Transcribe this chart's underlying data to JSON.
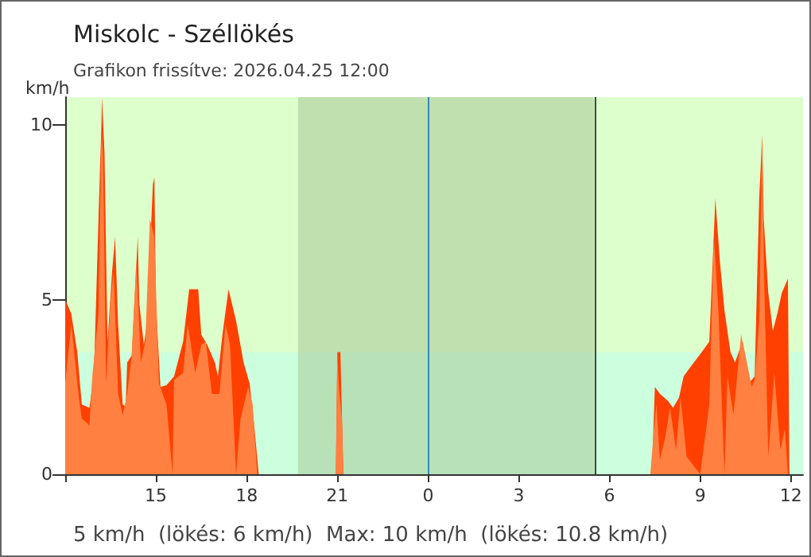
{
  "chart_data": {
    "type": "area",
    "title": "Miskolc - Széllökés",
    "subtitle": "Grafikon frissítve: 2026.04.25 12:00",
    "ylabel": "km/h",
    "annotations": [
      "5 km/h  (lökés: 6 km/h)  Max: 10 km/h  (lökés: 10.8 km/h)"
    ],
    "series": [
      {
        "color": "#ff4000",
        "x": [
          "2026-04-24T12:00",
          "2026-04-24T12:12",
          "2026-04-24T12:24",
          "2026-04-24T12:33",
          "2026-04-24T12:48",
          "2026-04-24T12:57",
          "2026-04-24T13:06",
          "2026-04-24T13:12",
          "2026-04-24T13:13",
          "2026-04-24T13:18",
          "2026-04-24T13:24",
          "2026-04-24T13:33",
          "2026-04-24T13:39",
          "2026-04-24T13:45",
          "2026-04-24T13:54",
          "2026-04-24T14:00",
          "2026-04-24T14:03",
          "2026-04-24T14:12",
          "2026-04-24T14:24",
          "2026-04-24T14:27",
          "2026-04-24T14:36",
          "2026-04-24T14:42",
          "2026-04-24T14:54",
          "2026-04-24T14:57",
          "2026-04-24T15:00",
          "2026-04-24T15:09",
          "2026-04-24T15:21",
          "2026-04-24T15:36",
          "2026-04-24T15:54",
          "2026-04-24T16:06",
          "2026-04-24T16:24",
          "2026-04-24T16:30",
          "2026-04-24T16:42",
          "2026-04-24T16:57",
          "2026-04-24T17:03",
          "2026-04-24T17:12",
          "2026-04-24T17:24",
          "2026-04-24T17:39",
          "2026-04-24T17:54",
          "2026-04-24T18:06",
          "2026-04-24T18:15",
          "2026-04-24T18:24",
          "2026-04-24T20:57",
          "2026-04-24T21:00",
          "2026-04-24T21:06",
          "2026-04-24T21:12",
          "2026-04-25T07:24",
          "2026-04-25T07:30",
          "2026-04-25T07:40",
          "2026-04-25T07:56",
          "2026-04-25T08:06",
          "2026-04-25T08:18",
          "2026-04-25T08:27",
          "2026-04-25T08:42",
          "2026-04-25T09:03",
          "2026-04-25T09:18",
          "2026-04-25T09:30",
          "2026-04-25T09:39",
          "2026-04-25T09:48",
          "2026-04-25T10:00",
          "2026-04-25T10:09",
          "2026-04-25T10:24",
          "2026-04-25T10:36",
          "2026-04-25T10:48",
          "2026-04-25T10:57",
          "2026-04-25T11:03",
          "2026-04-25T11:06",
          "2026-04-25T11:15",
          "2026-04-25T11:24",
          "2026-04-25T11:33",
          "2026-04-25T11:42",
          "2026-04-25T11:54",
          "2026-04-25T11:57",
          "2026-04-25T12:24"
        ],
        "values": [
          5.0,
          4.6,
          3.5,
          2.0,
          1.9,
          2.85,
          7.3,
          10.1,
          10.8,
          9.2,
          3.8,
          5.8,
          6.8,
          4.3,
          2.0,
          1.95,
          3.2,
          3.4,
          6.8,
          4.9,
          3.7,
          4.3,
          8.3,
          8.5,
          4.9,
          2.5,
          2.55,
          2.8,
          3.8,
          5.3,
          5.3,
          4.0,
          3.7,
          3.2,
          2.8,
          4.0,
          5.3,
          4.4,
          3.2,
          2.6,
          1.4,
          0,
          0,
          3.5,
          3.5,
          0,
          0,
          2.5,
          2.3,
          2.1,
          1.9,
          2.2,
          2.8,
          3.1,
          3.5,
          3.8,
          7.9,
          6.1,
          4.7,
          3.5,
          3.2,
          3.8,
          2.6,
          2.8,
          7.9,
          9.7,
          7.3,
          5.2,
          4.1,
          4.6,
          5.2,
          5.6,
          0,
          0
        ]
      },
      {
        "color": "#ff8040",
        "x": [
          "2026-04-24T12:00",
          "2026-04-24T12:12",
          "2026-04-24T12:27",
          "2026-04-24T12:33",
          "2026-04-24T12:48",
          "2026-04-24T12:54",
          "2026-04-24T13:06",
          "2026-04-24T13:12",
          "2026-04-24T13:15",
          "2026-04-24T13:21",
          "2026-04-24T13:30",
          "2026-04-24T13:36",
          "2026-04-24T13:45",
          "2026-04-24T13:54",
          "2026-04-24T14:03",
          "2026-04-24T14:12",
          "2026-04-24T14:21",
          "2026-04-24T14:30",
          "2026-04-24T14:39",
          "2026-04-24T14:48",
          "2026-04-24T14:57",
          "2026-04-24T15:06",
          "2026-04-24T15:21",
          "2026-04-24T15:33",
          "2026-04-24T15:36",
          "2026-04-24T15:54",
          "2026-04-24T16:03",
          "2026-04-24T16:18",
          "2026-04-24T16:30",
          "2026-04-24T16:39",
          "2026-04-24T16:51",
          "2026-04-24T17:06",
          "2026-04-24T17:18",
          "2026-04-24T17:27",
          "2026-04-24T17:39",
          "2026-04-24T17:48",
          "2026-04-24T18:03",
          "2026-04-24T18:12",
          "2026-04-24T18:21",
          "2026-04-24T20:57",
          "2026-04-24T21:00",
          "2026-04-24T21:03",
          "2026-04-24T21:09",
          "2026-04-24T21:12",
          "2026-04-25T07:21",
          "2026-04-25T07:27",
          "2026-04-25T07:33",
          "2026-04-25T07:40",
          "2026-04-25T07:51",
          "2026-04-25T08:00",
          "2026-04-25T08:12",
          "2026-04-25T08:21",
          "2026-04-25T08:33",
          "2026-04-25T09:00",
          "2026-04-25T09:18",
          "2026-04-25T09:27",
          "2026-04-25T09:36",
          "2026-04-25T09:48",
          "2026-04-25T09:54",
          "2026-04-25T10:06",
          "2026-04-25T10:21",
          "2026-04-25T10:30",
          "2026-04-25T10:42",
          "2026-04-25T10:48",
          "2026-04-25T10:57",
          "2026-04-25T11:03",
          "2026-04-25T11:06",
          "2026-04-25T11:15",
          "2026-04-25T11:27",
          "2026-04-25T11:39",
          "2026-04-25T11:48",
          "2026-04-25T11:54",
          "2026-04-25T12:24"
        ],
        "values": [
          2.6,
          4.3,
          2.2,
          1.6,
          1.4,
          2.85,
          4.6,
          9.8,
          9.2,
          2.6,
          5.0,
          5.8,
          2.3,
          1.7,
          2.3,
          3.4,
          6.1,
          3.2,
          3.8,
          7.3,
          6.8,
          2.6,
          2.0,
          0,
          2.7,
          2.9,
          4.3,
          2.9,
          3.7,
          3.8,
          2.3,
          2.3,
          4.3,
          3.7,
          0,
          1.6,
          2.5,
          2.0,
          0,
          0,
          3.5,
          2.5,
          1.6,
          0,
          0,
          1.1,
          2.0,
          0.4,
          1.1,
          1.9,
          0.7,
          2.2,
          0.5,
          0,
          2.0,
          6.8,
          4.7,
          0,
          2.8,
          1.7,
          4.0,
          3.4,
          2.5,
          2.7,
          4.4,
          9.7,
          6.1,
          0.5,
          2.9,
          0.7,
          1.3,
          0,
          0
        ]
      }
    ],
    "xlim": [
      "2026-04-24T12:00",
      "2026-04-25T12:24"
    ],
    "xticks": [
      {
        "value": "2026-04-24T12:00",
        "label": null
      },
      {
        "value": "2026-04-24T15:00",
        "label": "15"
      },
      {
        "value": "2026-04-24T18:00",
        "label": "18"
      },
      {
        "value": "2026-04-24T21:00",
        "label": "21"
      },
      {
        "value": "2026-04-25T00:00",
        "label": "0"
      },
      {
        "value": "2026-04-25T03:00",
        "label": "3"
      },
      {
        "value": "2026-04-25T06:00",
        "label": "6"
      },
      {
        "value": "2026-04-25T09:00",
        "label": "9"
      },
      {
        "value": "2026-04-25T12:00",
        "label": "12"
      }
    ],
    "ylim": [
      0,
      10.8
    ],
    "yticks": [
      0,
      5,
      10
    ],
    "bands": [
      {
        "axis": "y",
        "from": 0,
        "to": 3.5,
        "color": "#ccffdd"
      },
      {
        "axis": "x",
        "from": "2026-04-24T19:42",
        "to": "2026-04-25T05:30",
        "color": "#a8c898"
      }
    ],
    "ref_lines": [
      {
        "axis": "x",
        "value": "2026-04-25T00:00",
        "color": "#3388bb"
      },
      {
        "axis": "x",
        "value": "2026-04-25T05:30",
        "color": "#444444"
      }
    ],
    "grid": false,
    "marker": "none"
  }
}
